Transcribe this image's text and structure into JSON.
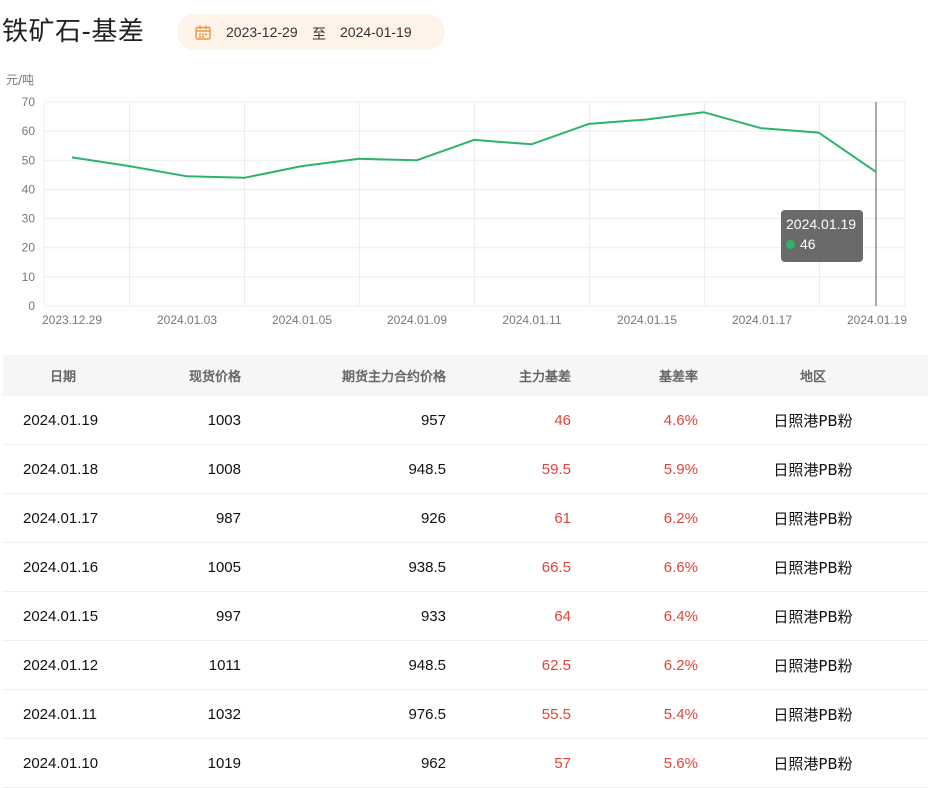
{
  "header": {
    "title": "铁矿石-基差",
    "start_date": "2023-12-29",
    "separator": "至",
    "end_date": "2024-01-19"
  },
  "chart_data": {
    "type": "line",
    "ylabel": "元/吨",
    "ylim": [
      0,
      70
    ],
    "yticks": [
      0,
      10,
      20,
      30,
      40,
      50,
      60,
      70
    ],
    "x_tick_labels": [
      "2023.12.29",
      "2024.01.03",
      "2024.01.05",
      "2024.01.09",
      "2024.01.11",
      "2024.01.15",
      "2024.01.17",
      "2024.01.19"
    ],
    "x": [
      "2023.12.29",
      "2024.01.02",
      "2024.01.03",
      "2024.01.04",
      "2024.01.05",
      "2024.01.08",
      "2024.01.09",
      "2024.01.10",
      "2024.01.11",
      "2024.01.12",
      "2024.01.15",
      "2024.01.16",
      "2024.01.17",
      "2024.01.18",
      "2024.01.19"
    ],
    "series": [
      {
        "values": [
          51,
          48,
          44.5,
          44,
          48,
          50.5,
          50,
          57,
          55.5,
          62.5,
          64,
          66.5,
          61,
          59.5,
          46
        ],
        "color": "#2db36b"
      }
    ],
    "grid": true,
    "tooltip": {
      "label": "2024.01.19",
      "value": "46"
    }
  },
  "table": {
    "headers": [
      "日期",
      "现货价格",
      "期货主力合约价格",
      "主力基差",
      "基差率",
      "地区"
    ],
    "rows": [
      [
        "2024.01.19",
        "1003",
        "957",
        "46",
        "4.6%",
        "日照港PB粉"
      ],
      [
        "2024.01.18",
        "1008",
        "948.5",
        "59.5",
        "5.9%",
        "日照港PB粉"
      ],
      [
        "2024.01.17",
        "987",
        "926",
        "61",
        "6.2%",
        "日照港PB粉"
      ],
      [
        "2024.01.16",
        "1005",
        "938.5",
        "66.5",
        "6.6%",
        "日照港PB粉"
      ],
      [
        "2024.01.15",
        "997",
        "933",
        "64",
        "6.4%",
        "日照港PB粉"
      ],
      [
        "2024.01.12",
        "1011",
        "948.5",
        "62.5",
        "6.2%",
        "日照港PB粉"
      ],
      [
        "2024.01.11",
        "1032",
        "976.5",
        "55.5",
        "5.4%",
        "日照港PB粉"
      ],
      [
        "2024.01.10",
        "1019",
        "962",
        "57",
        "5.6%",
        "日照港PB粉"
      ]
    ]
  }
}
